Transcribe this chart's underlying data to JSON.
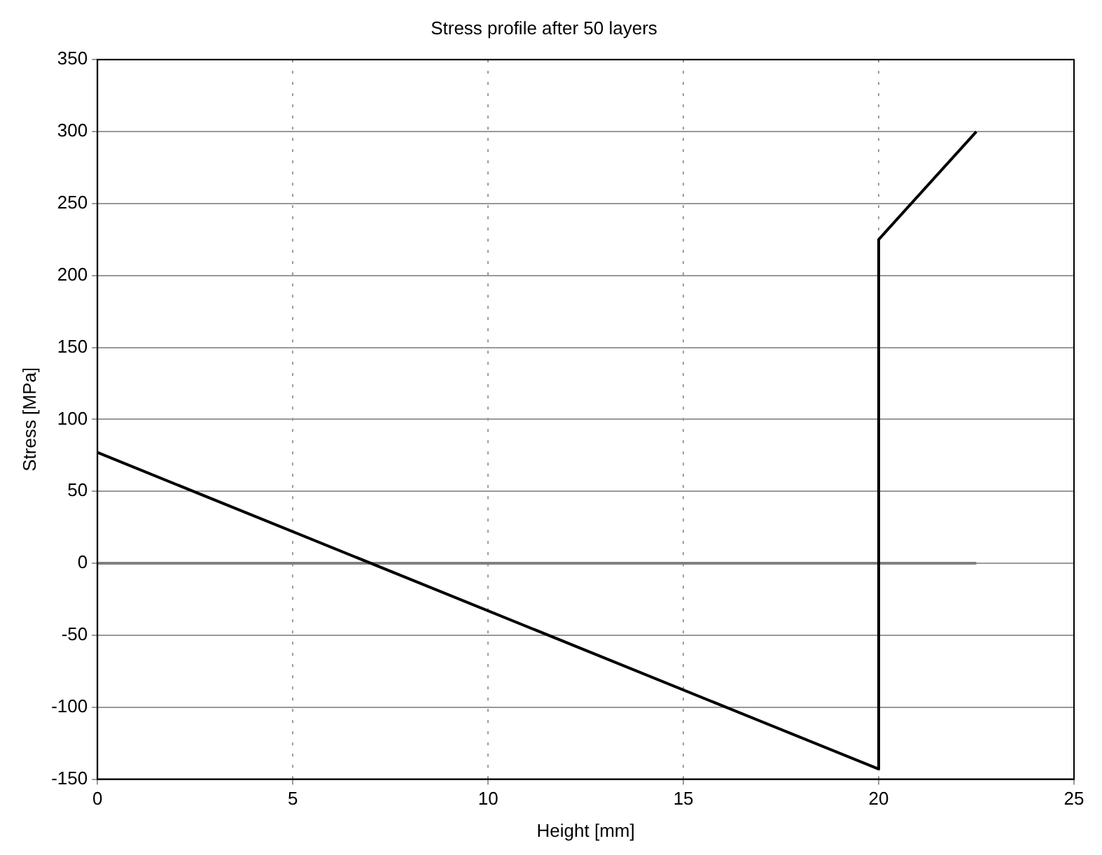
{
  "chart_data": {
    "type": "line",
    "title": "Stress profile after 50 layers",
    "xlabel": "Height [mm]",
    "ylabel": "Stress [MPa]",
    "series": [
      {
        "color": "#000000",
        "x": [
          0,
          20,
          20,
          22.5
        ],
        "values": [
          77,
          -143,
          225,
          300
        ]
      },
      {
        "color": "#808080",
        "x": [
          0,
          22.5
        ],
        "values": [
          0,
          0
        ]
      }
    ],
    "xlim": [
      0,
      25
    ],
    "xticks": [
      0,
      5,
      10,
      15,
      20,
      25
    ],
    "ylim": [
      -150,
      350
    ],
    "yticks": [
      -150,
      -100,
      -50,
      0,
      50,
      100,
      150,
      200,
      250,
      300,
      350
    ],
    "grid": true,
    "legend": false,
    "marker": "none",
    "line_style": "solid"
  }
}
